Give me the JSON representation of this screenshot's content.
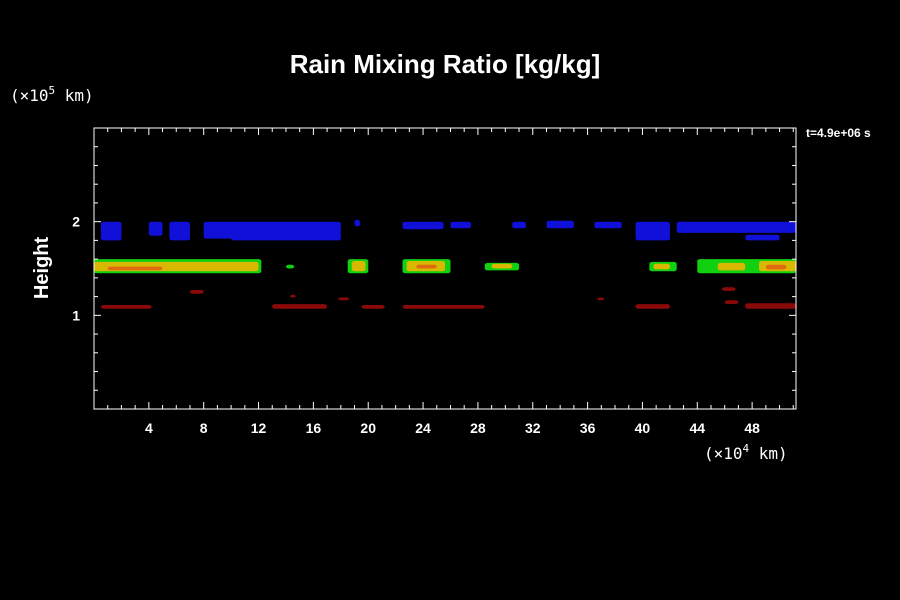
{
  "chart_data": {
    "type": "heatmap",
    "title": "Rain Mixing Ratio [kg/kg]",
    "ylabel": "Height",
    "y_unit_prefix": "(×10",
    "y_unit_exp": "5",
    "y_unit_suffix": " km)",
    "x_unit_prefix": "(×10",
    "x_unit_exp": "4",
    "x_unit_suffix": " km)",
    "time_label": "t=4.9e+06 s",
    "xlim": [
      0,
      51.2
    ],
    "ylim": [
      0,
      3.0
    ],
    "x_ticks": [
      4,
      8,
      12,
      16,
      20,
      24,
      28,
      32,
      36,
      40,
      44,
      48
    ],
    "y_ticks": [
      1,
      2
    ],
    "x_tick_labels": [
      "4",
      "8",
      "12",
      "16",
      "20",
      "24",
      "28",
      "32",
      "36",
      "40",
      "44",
      "48"
    ],
    "y_tick_labels": [
      "1",
      "2"
    ],
    "colors": {
      "blue": "#1010d8",
      "green": "#10d010",
      "yellow": "#d8b800",
      "orange": "#e06a10",
      "darkred": "#8a0a0a"
    },
    "regions": [
      {
        "level": "blue",
        "x": [
          0.5,
          2.0
        ],
        "y": [
          1.8,
          2.0
        ]
      },
      {
        "level": "blue",
        "x": [
          4.0,
          5.0
        ],
        "y": [
          1.85,
          2.0
        ]
      },
      {
        "level": "blue",
        "x": [
          5.5,
          7.0
        ],
        "y": [
          1.8,
          2.0
        ]
      },
      {
        "level": "blue",
        "x": [
          8.0,
          18.0
        ],
        "y": [
          1.82,
          2.0
        ]
      },
      {
        "level": "blue",
        "x": [
          10.0,
          18.0
        ],
        "y": [
          1.8,
          1.86
        ]
      },
      {
        "level": "blue",
        "x": [
          19.0,
          19.4
        ],
        "y": [
          1.95,
          2.02
        ]
      },
      {
        "level": "blue",
        "x": [
          22.5,
          25.5
        ],
        "y": [
          1.92,
          2.0
        ]
      },
      {
        "level": "blue",
        "x": [
          26.0,
          27.5
        ],
        "y": [
          1.93,
          2.0
        ]
      },
      {
        "level": "blue",
        "x": [
          30.5,
          31.5
        ],
        "y": [
          1.93,
          2.0
        ]
      },
      {
        "level": "blue",
        "x": [
          33.0,
          35.0
        ],
        "y": [
          1.93,
          2.01
        ]
      },
      {
        "level": "blue",
        "x": [
          36.5,
          38.5
        ],
        "y": [
          1.93,
          2.0
        ]
      },
      {
        "level": "blue",
        "x": [
          39.5,
          42.0
        ],
        "y": [
          1.8,
          2.0
        ]
      },
      {
        "level": "blue",
        "x": [
          42.5,
          51.2
        ],
        "y": [
          1.88,
          2.0
        ]
      },
      {
        "level": "blue",
        "x": [
          47.5,
          50.0
        ],
        "y": [
          1.8,
          1.86
        ]
      },
      {
        "level": "green",
        "x": [
          0.0,
          12.2
        ],
        "y": [
          1.45,
          1.6
        ]
      },
      {
        "level": "green",
        "x": [
          18.5,
          20.0
        ],
        "y": [
          1.45,
          1.6
        ]
      },
      {
        "level": "green",
        "x": [
          22.5,
          26.0
        ],
        "y": [
          1.45,
          1.6
        ]
      },
      {
        "level": "green",
        "x": [
          28.5,
          31.0
        ],
        "y": [
          1.48,
          1.56
        ]
      },
      {
        "level": "green",
        "x": [
          40.5,
          42.5
        ],
        "y": [
          1.47,
          1.57
        ]
      },
      {
        "level": "green",
        "x": [
          44.0,
          51.2
        ],
        "y": [
          1.45,
          1.6
        ]
      },
      {
        "level": "green",
        "x": [
          14.0,
          14.6
        ],
        "y": [
          1.5,
          1.54
        ]
      },
      {
        "level": "yellow",
        "x": [
          0.0,
          12.0
        ],
        "y": [
          1.47,
          1.57
        ]
      },
      {
        "level": "yellow",
        "x": [
          18.8,
          19.8
        ],
        "y": [
          1.47,
          1.58
        ]
      },
      {
        "level": "yellow",
        "x": [
          22.8,
          25.6
        ],
        "y": [
          1.47,
          1.58
        ]
      },
      {
        "level": "yellow",
        "x": [
          29.0,
          30.5
        ],
        "y": [
          1.5,
          1.55
        ]
      },
      {
        "level": "yellow",
        "x": [
          40.8,
          42.0
        ],
        "y": [
          1.49,
          1.55
        ]
      },
      {
        "level": "yellow",
        "x": [
          45.5,
          47.5
        ],
        "y": [
          1.48,
          1.56
        ]
      },
      {
        "level": "yellow",
        "x": [
          48.5,
          51.2
        ],
        "y": [
          1.47,
          1.58
        ]
      },
      {
        "level": "orange",
        "x": [
          1.0,
          5.0
        ],
        "y": [
          1.48,
          1.52
        ]
      },
      {
        "level": "orange",
        "x": [
          23.5,
          25.0
        ],
        "y": [
          1.5,
          1.54
        ]
      },
      {
        "level": "orange",
        "x": [
          49.0,
          50.5
        ],
        "y": [
          1.49,
          1.54
        ]
      },
      {
        "level": "darkred",
        "x": [
          0.5,
          4.2
        ],
        "y": [
          1.07,
          1.11
        ]
      },
      {
        "level": "darkred",
        "x": [
          7.0,
          8.0
        ],
        "y": [
          1.23,
          1.27
        ]
      },
      {
        "level": "darkred",
        "x": [
          13.0,
          17.0
        ],
        "y": [
          1.07,
          1.12
        ]
      },
      {
        "level": "darkred",
        "x": [
          14.3,
          14.7
        ],
        "y": [
          1.19,
          1.22
        ]
      },
      {
        "level": "darkred",
        "x": [
          17.8,
          18.6
        ],
        "y": [
          1.16,
          1.19
        ]
      },
      {
        "level": "darkred",
        "x": [
          19.5,
          21.2
        ],
        "y": [
          1.07,
          1.11
        ]
      },
      {
        "level": "darkred",
        "x": [
          22.5,
          28.5
        ],
        "y": [
          1.07,
          1.11
        ]
      },
      {
        "level": "darkred",
        "x": [
          36.7,
          37.2
        ],
        "y": [
          1.16,
          1.19
        ]
      },
      {
        "level": "darkred",
        "x": [
          39.5,
          42.0
        ],
        "y": [
          1.07,
          1.12
        ]
      },
      {
        "level": "darkred",
        "x": [
          45.8,
          46.8
        ],
        "y": [
          1.26,
          1.3
        ]
      },
      {
        "level": "darkred",
        "x": [
          46.0,
          47.0
        ],
        "y": [
          1.12,
          1.16
        ]
      },
      {
        "level": "darkred",
        "x": [
          47.5,
          51.2
        ],
        "y": [
          1.07,
          1.13
        ]
      }
    ]
  }
}
